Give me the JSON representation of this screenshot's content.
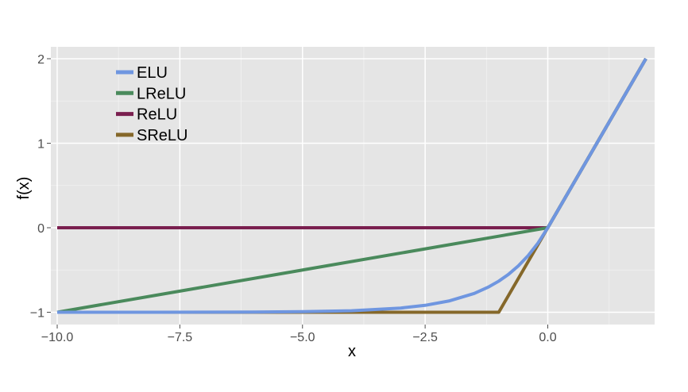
{
  "chart_data": {
    "type": "line",
    "title": "",
    "xlabel": "x",
    "ylabel": "f(x)",
    "xlim": [
      -10,
      2
    ],
    "ylim": [
      -1,
      2
    ],
    "x_ticks": [
      -10.0,
      -7.5,
      -5.0,
      -2.5,
      0.0
    ],
    "x_tick_labels": [
      "−10.0",
      "−7.5",
      "−5.0",
      "−2.5",
      "0.0"
    ],
    "y_ticks": [
      -1,
      0,
      1,
      2
    ],
    "y_tick_labels": [
      "−1",
      "0",
      "1",
      "2"
    ],
    "grid": true,
    "legend_position": "top-left",
    "series": [
      {
        "name": "ELU",
        "color": "#6f96e0",
        "points": [
          [
            -10,
            -1.0
          ],
          [
            -8,
            -1.0
          ],
          [
            -6,
            -0.998
          ],
          [
            -5,
            -0.993
          ],
          [
            -4,
            -0.982
          ],
          [
            -3,
            -0.95
          ],
          [
            -2.5,
            -0.918
          ],
          [
            -2,
            -0.865
          ],
          [
            -1.5,
            -0.777
          ],
          [
            -1.2,
            -0.699
          ],
          [
            -1,
            -0.632
          ],
          [
            -0.8,
            -0.551
          ],
          [
            -0.6,
            -0.451
          ],
          [
            -0.4,
            -0.33
          ],
          [
            -0.2,
            -0.181
          ],
          [
            0,
            0
          ],
          [
            2,
            2
          ]
        ]
      },
      {
        "name": "LReLU",
        "color": "#4a8a5c",
        "points": [
          [
            -10,
            -1.0
          ],
          [
            0,
            0
          ],
          [
            2,
            2
          ]
        ]
      },
      {
        "name": "ReLU",
        "color": "#7a1f4f",
        "points": [
          [
            -10,
            0
          ],
          [
            0,
            0
          ],
          [
            2,
            2
          ]
        ]
      },
      {
        "name": "SReLU",
        "color": "#85682a",
        "points": [
          [
            -10,
            -1.0
          ],
          [
            -1,
            -1.0
          ],
          [
            0,
            0
          ],
          [
            2,
            2
          ]
        ]
      }
    ]
  }
}
